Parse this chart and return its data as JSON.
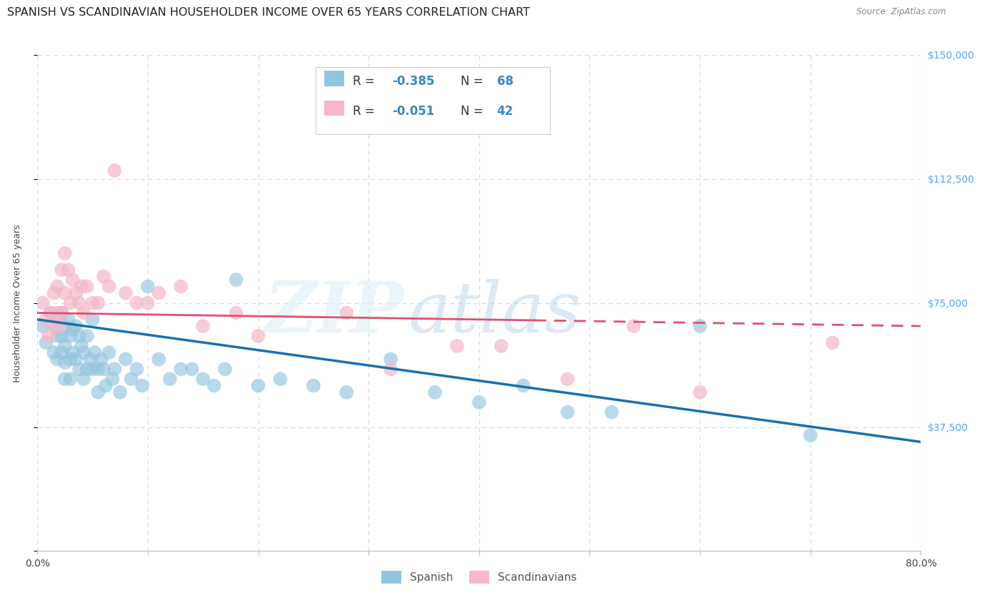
{
  "title": "SPANISH VS SCANDINAVIAN HOUSEHOLDER INCOME OVER 65 YEARS CORRELATION CHART",
  "source": "Source: ZipAtlas.com",
  "ylabel": "Householder Income Over 65 years",
  "xlim": [
    0,
    0.8
  ],
  "ylim": [
    0,
    150000
  ],
  "yticks": [
    0,
    37500,
    75000,
    112500,
    150000
  ],
  "ytick_labels": [
    "",
    "$37,500",
    "$75,000",
    "$112,500",
    "$150,000"
  ],
  "xticks": [
    0.0,
    0.1,
    0.2,
    0.3,
    0.4,
    0.5,
    0.6,
    0.7,
    0.8
  ],
  "watermark_zip": "ZIP",
  "watermark_atlas": "atlas",
  "legend_r1_text": "R = ",
  "legend_r1_val": "-0.385",
  "legend_n1_text": "  N = ",
  "legend_n1_val": "68",
  "legend_r2_text": "R = ",
  "legend_r2_val": "-0.051",
  "legend_n2_text": "  N = ",
  "legend_n2_val": "42",
  "legend_label1": "Spanish",
  "legend_label2": "Scandinavians",
  "blue_color": "#92c5de",
  "pink_color": "#f4b8c8",
  "blue_line_color": "#1a6faf",
  "pink_line_color": "#e05070",
  "legend_text_color": "#3a86c8",
  "background_color": "#ffffff",
  "grid_color": "#d8d8d8",
  "title_fontsize": 11.5,
  "axis_label_fontsize": 9,
  "tick_fontsize": 10,
  "spanish_x": [
    0.005,
    0.008,
    0.012,
    0.015,
    0.015,
    0.018,
    0.018,
    0.018,
    0.022,
    0.022,
    0.022,
    0.025,
    0.025,
    0.025,
    0.025,
    0.028,
    0.03,
    0.03,
    0.03,
    0.032,
    0.032,
    0.035,
    0.035,
    0.038,
    0.038,
    0.04,
    0.042,
    0.042,
    0.045,
    0.045,
    0.048,
    0.05,
    0.05,
    0.052,
    0.055,
    0.055,
    0.058,
    0.06,
    0.062,
    0.065,
    0.068,
    0.07,
    0.075,
    0.08,
    0.085,
    0.09,
    0.095,
    0.1,
    0.11,
    0.12,
    0.13,
    0.14,
    0.15,
    0.16,
    0.17,
    0.18,
    0.2,
    0.22,
    0.25,
    0.28,
    0.32,
    0.36,
    0.4,
    0.44,
    0.48,
    0.52,
    0.6,
    0.7
  ],
  "spanish_y": [
    68000,
    63000,
    72000,
    68000,
    60000,
    70000,
    65000,
    58000,
    72000,
    65000,
    60000,
    68000,
    62000,
    57000,
    52000,
    70000,
    65000,
    58000,
    52000,
    67000,
    60000,
    68000,
    58000,
    65000,
    55000,
    62000,
    60000,
    52000,
    65000,
    55000,
    58000,
    70000,
    55000,
    60000,
    55000,
    48000,
    58000,
    55000,
    50000,
    60000,
    52000,
    55000,
    48000,
    58000,
    52000,
    55000,
    50000,
    80000,
    58000,
    52000,
    55000,
    55000,
    52000,
    50000,
    55000,
    82000,
    50000,
    52000,
    50000,
    48000,
    58000,
    48000,
    45000,
    50000,
    42000,
    42000,
    68000,
    35000
  ],
  "scand_x": [
    0.005,
    0.008,
    0.01,
    0.012,
    0.015,
    0.015,
    0.018,
    0.018,
    0.02,
    0.022,
    0.022,
    0.025,
    0.025,
    0.028,
    0.03,
    0.032,
    0.035,
    0.038,
    0.04,
    0.042,
    0.045,
    0.05,
    0.055,
    0.06,
    0.065,
    0.07,
    0.08,
    0.09,
    0.1,
    0.11,
    0.13,
    0.15,
    0.18,
    0.2,
    0.28,
    0.32,
    0.38,
    0.42,
    0.48,
    0.54,
    0.6,
    0.72
  ],
  "scand_y": [
    75000,
    70000,
    65000,
    72000,
    78000,
    68000,
    80000,
    72000,
    68000,
    85000,
    72000,
    90000,
    78000,
    85000,
    75000,
    82000,
    78000,
    75000,
    80000,
    72000,
    80000,
    75000,
    75000,
    83000,
    80000,
    115000,
    78000,
    75000,
    75000,
    78000,
    80000,
    68000,
    72000,
    65000,
    72000,
    55000,
    62000,
    62000,
    52000,
    68000,
    48000,
    63000
  ]
}
